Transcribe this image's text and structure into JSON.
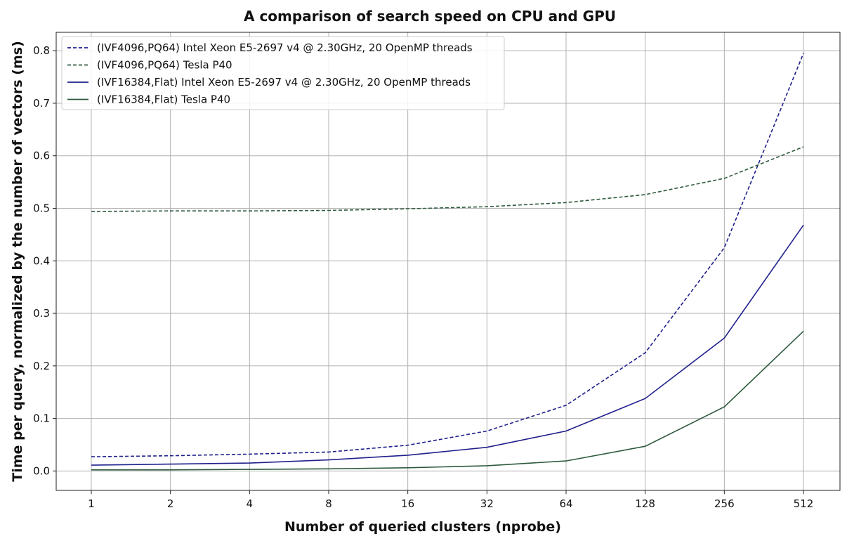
{
  "chart_data": {
    "type": "line",
    "title": "A comparison of search speed on CPU and GPU",
    "xlabel": "Number of queried clusters (nprobe)",
    "ylabel": "Time per query, normalized by the number of vectors (ms)",
    "x": [
      1,
      2,
      4,
      8,
      16,
      32,
      64,
      128,
      256,
      512
    ],
    "x_scale": "log2",
    "x_ticks": [
      "1",
      "2",
      "4",
      "8",
      "16",
      "32",
      "64",
      "128",
      "256",
      "512"
    ],
    "ylim": [
      -0.037,
      0.835
    ],
    "y_ticks": [
      "0.0",
      "0.1",
      "0.2",
      "0.3",
      "0.4",
      "0.5",
      "0.6",
      "0.7",
      "0.8"
    ],
    "grid": true,
    "legend_position": "top-left",
    "series": [
      {
        "name": "(IVF4096,PQ64) Intel Xeon E5-2697 v4 @ 2.30GHz, 20 OpenMP threads",
        "color": "#1f1f8c",
        "dash": "dashed",
        "values": [
          0.027,
          0.029,
          0.032,
          0.036,
          0.049,
          0.076,
          0.125,
          0.225,
          0.425,
          0.795
        ]
      },
      {
        "name": "(IVF4096,PQ64) Tesla P40",
        "color": "#2d5a3d",
        "dash": "dashed",
        "values": [
          0.494,
          0.495,
          0.495,
          0.496,
          0.499,
          0.503,
          0.511,
          0.526,
          0.557,
          0.617
        ]
      },
      {
        "name": "(IVF16384,Flat) Intel Xeon E5-2697 v4 @ 2.30GHz, 20 OpenMP threads",
        "color": "#1f1f8c",
        "dash": "solid",
        "values": [
          0.011,
          0.013,
          0.015,
          0.021,
          0.03,
          0.045,
          0.076,
          0.138,
          0.253,
          0.468
        ]
      },
      {
        "name": "(IVF16384,Flat) Tesla P40",
        "color": "#2d5a3d",
        "dash": "solid",
        "values": [
          0.002,
          0.002,
          0.003,
          0.004,
          0.006,
          0.01,
          0.019,
          0.047,
          0.122,
          0.266
        ]
      }
    ]
  }
}
